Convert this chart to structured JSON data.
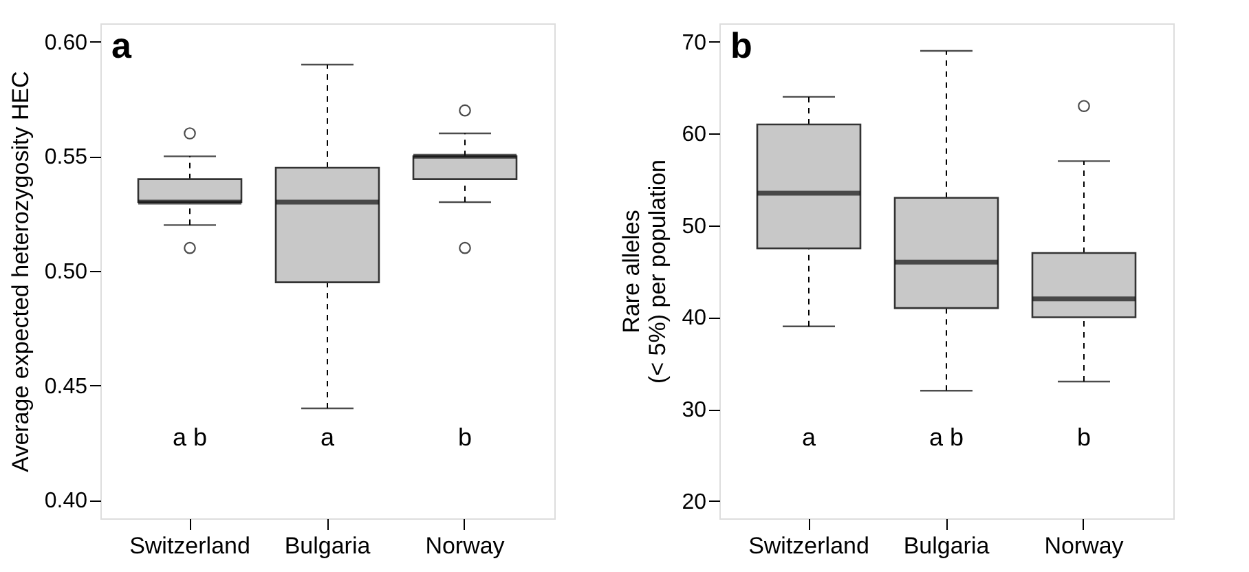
{
  "chart_data": [
    {
      "type": "box",
      "ylabel": "Average expected heterozygosity  HEC",
      "categories": [
        "Switzerland",
        "Bulgaria",
        "Norway"
      ],
      "boxes": [
        {
          "low": 0.52,
          "q1": 0.53,
          "median": 0.53,
          "q3": 0.54,
          "high": 0.55,
          "outliers": [
            0.56,
            0.51
          ]
        },
        {
          "low": 0.44,
          "q1": 0.495,
          "median": 0.53,
          "q3": 0.545,
          "high": 0.59
        },
        {
          "low": 0.53,
          "q1": 0.54,
          "median": 0.55,
          "q3": 0.55,
          "high": 0.56,
          "outliers": [
            0.57,
            0.51
          ]
        }
      ],
      "color": "#c8c8c8",
      "ylim": [
        0.392,
        0.608
      ],
      "yticks": [
        {
          "value": 0.4,
          "label": "0.40"
        },
        {
          "value": 0.45,
          "label": "0.45"
        },
        {
          "value": 0.5,
          "label": "0.50"
        },
        {
          "value": 0.55,
          "label": "0.55"
        },
        {
          "value": 0.6,
          "label": "0.60"
        }
      ],
      "grid": false,
      "annotations": [
        "a",
        "a b",
        "a",
        "b"
      ]
    },
    {
      "type": "box",
      "ylabel": "Rare alleles\n(< 5%) per population",
      "categories": [
        "Switzerland",
        "Bulgaria",
        "Norway"
      ],
      "boxes": [
        {
          "low": 39,
          "q1": 47.5,
          "median": 53.5,
          "q3": 61,
          "high": 64
        },
        {
          "low": 32,
          "q1": 41,
          "median": 46,
          "q3": 53,
          "high": 69
        },
        {
          "low": 33,
          "q1": 40,
          "median": 42,
          "q3": 47,
          "high": 57,
          "outliers": [
            63
          ]
        }
      ],
      "color": "#c8c8c8",
      "ylim": [
        18.1,
        72
      ],
      "yticks": [
        20,
        30,
        40,
        50,
        60,
        70
      ],
      "grid": false,
      "annotations": [
        "b",
        "a",
        "a b",
        "b"
      ]
    }
  ]
}
